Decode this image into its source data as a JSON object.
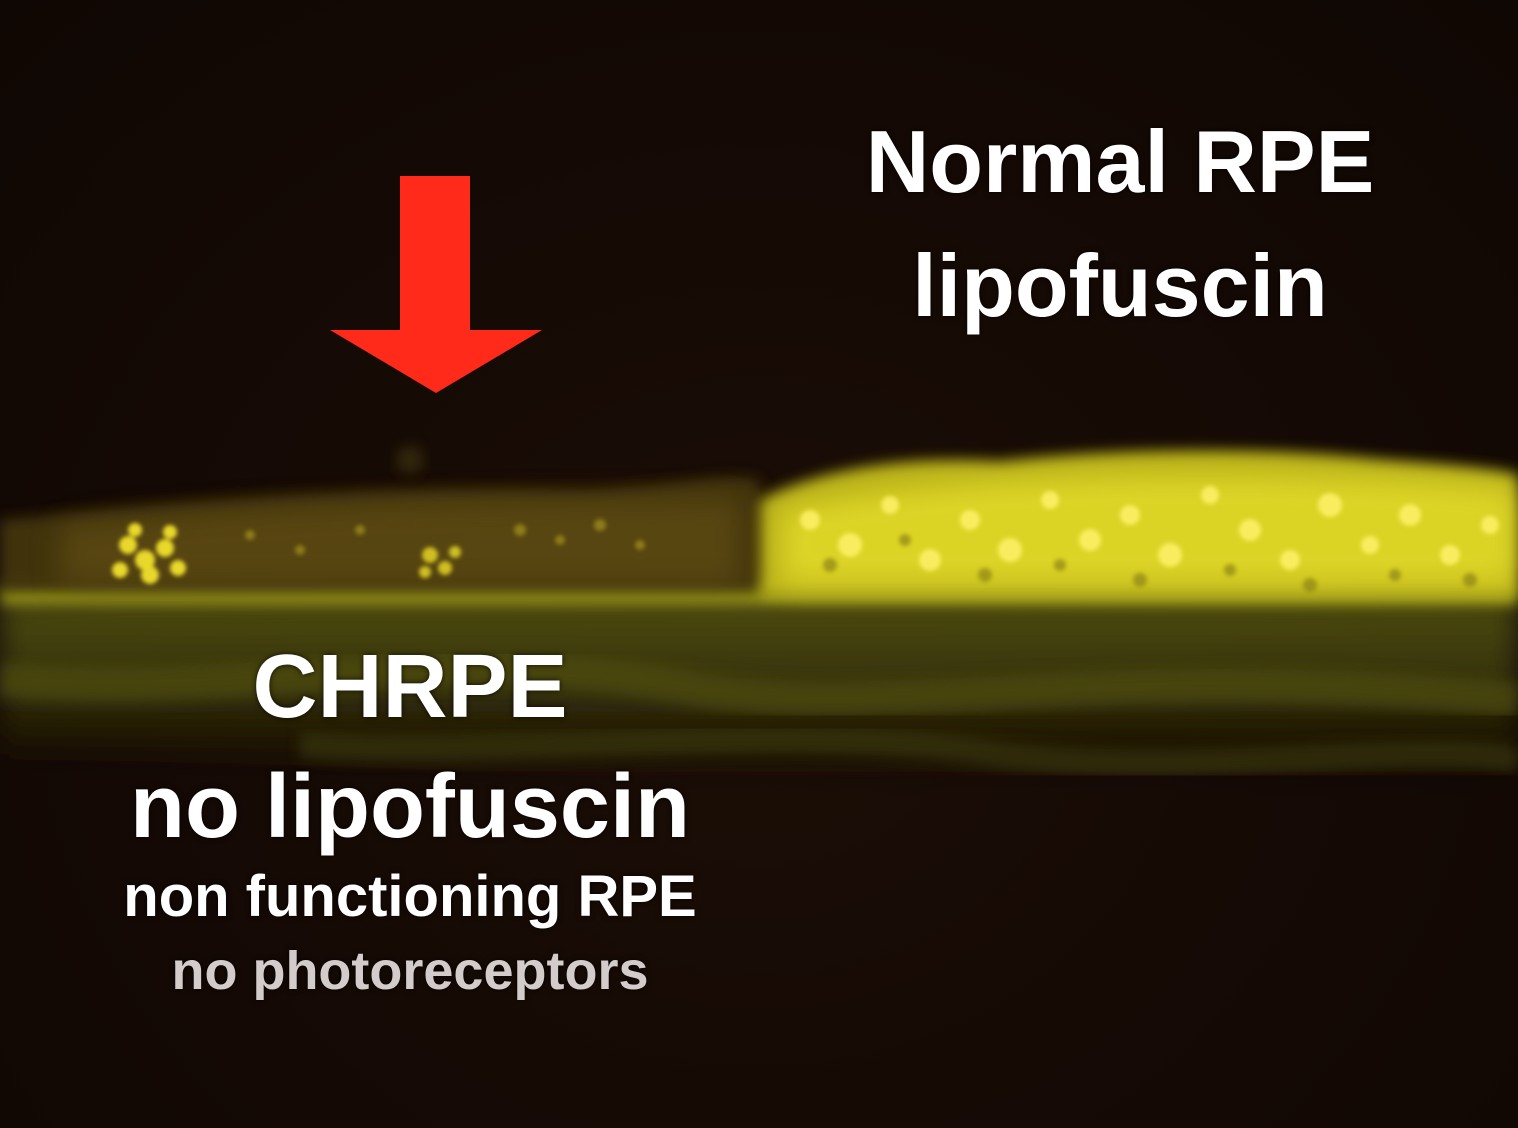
{
  "annotations": {
    "normal": {
      "title": "Normal RPE",
      "subtitle": "lipofuscin"
    },
    "chrpe": {
      "title": "CHRPE",
      "subtitle": "no lipofuscin",
      "note_primary": "non functioning RPE",
      "note_secondary": "no photoreceptors"
    }
  },
  "colors": {
    "background": "#150a05",
    "arrow": "#ff2a1a",
    "fluorescence": "#e6e020",
    "label_primary": "#ffffff",
    "label_secondary": "#d4cccb"
  },
  "icons": {
    "pointer": "red-down-arrow-icon"
  }
}
